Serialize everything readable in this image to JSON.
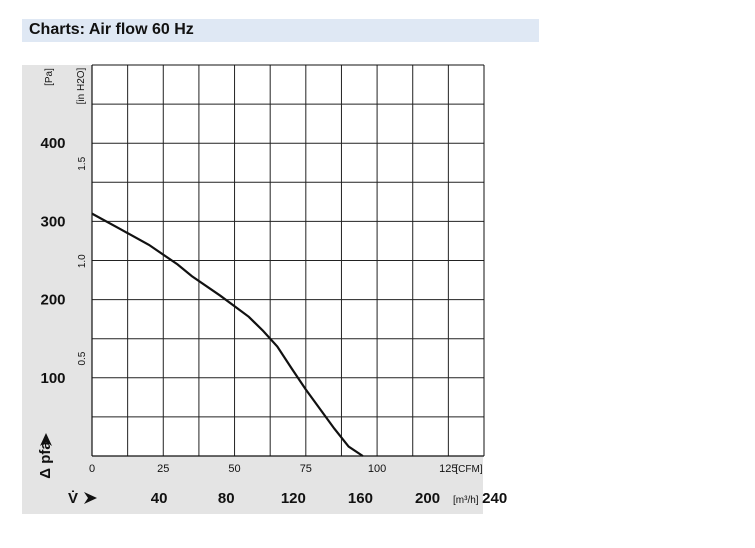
{
  "header": {
    "title": "Charts: Air flow 60 Hz"
  },
  "chart_data": {
    "type": "line",
    "title": "Charts: Air flow 60 Hz",
    "x_axis_primary": {
      "unit_label": "[CFM]",
      "range": [
        0,
        137.5
      ],
      "ticks": [
        0,
        25,
        50,
        75,
        100,
        125
      ],
      "tick_labels": [
        "0",
        "25",
        "50",
        "75",
        "100",
        "125"
      ]
    },
    "x_axis_secondary": {
      "label": "V̇",
      "unit_label": "[m³/h]",
      "ticks": [
        40,
        80,
        120,
        160,
        200,
        240
      ],
      "tick_labels": [
        "40",
        "80",
        "120",
        "160",
        "200",
        "240"
      ]
    },
    "y_axis_primary": {
      "label": "Δ pfa",
      "unit_label": "[Pa]",
      "range": [
        0,
        500
      ],
      "ticks": [
        100,
        200,
        300,
        400
      ],
      "tick_labels": [
        "100",
        "200",
        "300",
        "400"
      ]
    },
    "y_axis_secondary": {
      "unit_label": "[in H2O]",
      "ticks": [
        0.5,
        1.0,
        1.5
      ],
      "tick_labels": [
        "0.5",
        "1.0",
        "1.5"
      ]
    },
    "grid": true,
    "series": [
      {
        "x": [
          0,
          10,
          20,
          30,
          35,
          45,
          55,
          60,
          65,
          70,
          75,
          80,
          85,
          90,
          95
        ],
        "y": [
          310,
          290,
          270,
          245,
          230,
          205,
          178,
          160,
          140,
          112,
          85,
          60,
          35,
          12,
          0
        ]
      }
    ]
  }
}
